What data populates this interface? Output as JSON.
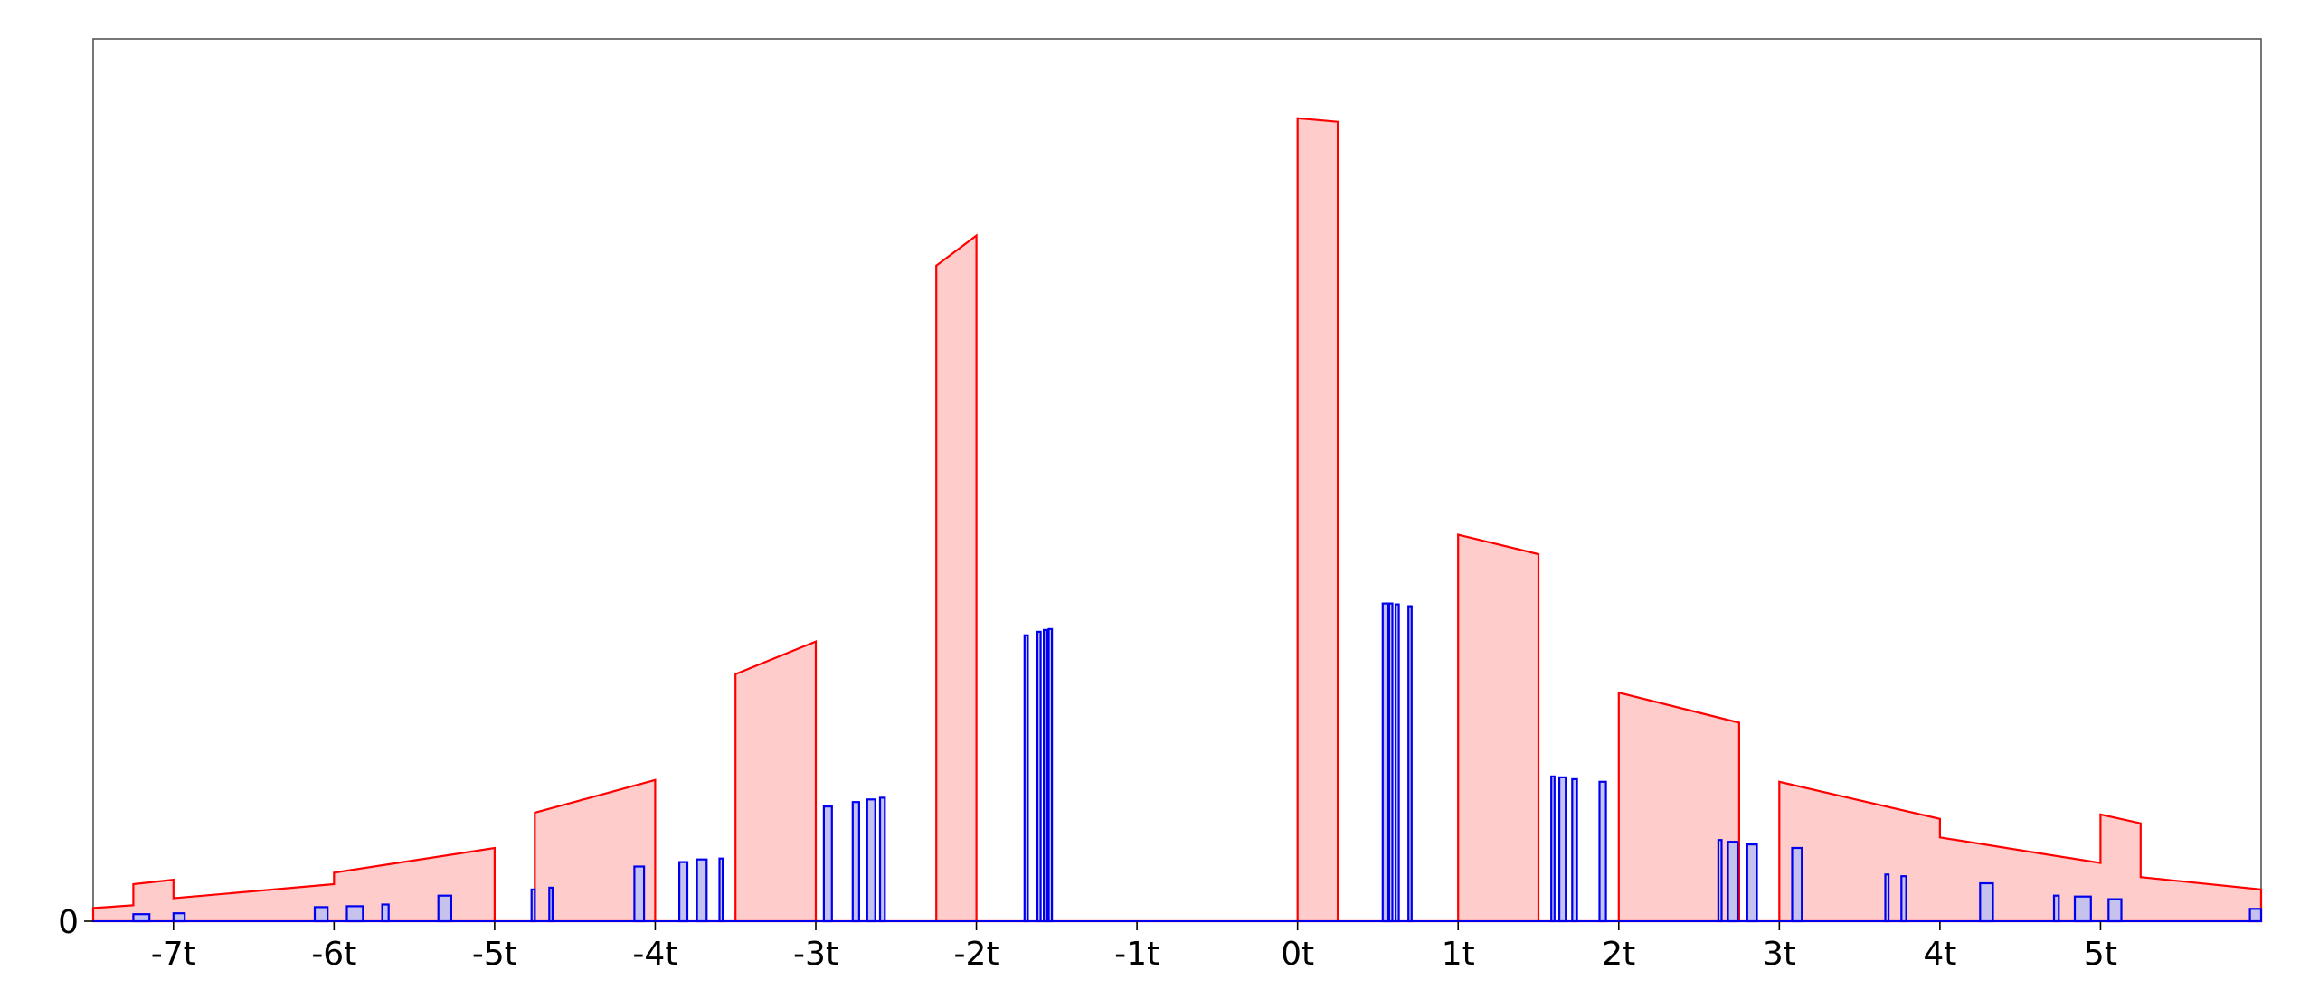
{
  "chart_data": {
    "type": "area",
    "x_tick_labels": [
      "-7t",
      "-6t",
      "-5t",
      "-4t",
      "-3t",
      "-2t",
      "-1t",
      "0t",
      "1t",
      "2t",
      "3t",
      "4t",
      "5t"
    ],
    "x_ticks": [
      -7,
      -6,
      -5,
      -4,
      -3,
      -2,
      -1,
      0,
      1,
      2,
      3,
      4,
      5
    ],
    "y_tick_labels": [
      "0"
    ],
    "y_ticks": [
      0
    ],
    "xlim": [
      -7.5,
      6.0
    ],
    "ylim": [
      0,
      100
    ],
    "grid": false,
    "legend": "none",
    "colors": {
      "red_stroke": "#ff0000",
      "red_fill": "#ffcccc",
      "blue_stroke": "#0000ee",
      "blue_fill": "#c6c2ee",
      "frame": "#555555"
    },
    "series": [
      {
        "color": "red",
        "points": [
          [
            -7.5,
            1.5
          ],
          [
            -7.25,
            1.8
          ],
          [
            -7.25,
            4.2
          ],
          [
            -7.0,
            4.7
          ],
          [
            -7.0,
            2.6
          ],
          [
            -6.0,
            4.2
          ],
          [
            -6.0,
            5.5
          ],
          [
            -5.0,
            8.3
          ],
          [
            -5.0,
            0
          ],
          [
            -4.75,
            0
          ],
          [
            -4.75,
            12.3
          ],
          [
            -4.0,
            16.0
          ],
          [
            -4.0,
            0
          ],
          [
            -3.5,
            0
          ],
          [
            -3.5,
            28.0
          ],
          [
            -3.0,
            31.7
          ],
          [
            -3.0,
            0
          ],
          [
            -2.25,
            0
          ],
          [
            -2.25,
            74.3
          ],
          [
            -2.0,
            77.7
          ],
          [
            -2.0,
            0
          ],
          [
            0.0,
            0
          ],
          [
            0.0,
            91.0
          ],
          [
            0.25,
            90.6
          ],
          [
            0.25,
            0
          ],
          [
            1.0,
            0
          ],
          [
            1.0,
            43.8
          ],
          [
            1.5,
            41.6
          ],
          [
            1.5,
            0
          ],
          [
            2.0,
            0
          ],
          [
            2.0,
            25.9
          ],
          [
            2.75,
            22.5
          ],
          [
            2.75,
            0
          ],
          [
            3.0,
            0
          ],
          [
            3.0,
            15.8
          ],
          [
            4.0,
            11.6
          ],
          [
            4.0,
            9.5
          ],
          [
            5.0,
            6.6
          ],
          [
            5.0,
            12.1
          ],
          [
            5.25,
            11.1
          ],
          [
            5.25,
            5.0
          ],
          [
            6.0,
            3.6
          ]
        ]
      },
      {
        "color": "blue",
        "bars": [
          [
            -7.25,
            -7.15,
            0.8
          ],
          [
            -7.0,
            -6.93,
            0.9
          ],
          [
            -6.12,
            -6.04,
            1.6
          ],
          [
            -5.92,
            -5.82,
            1.7
          ],
          [
            -5.7,
            -5.66,
            1.9
          ],
          [
            -5.35,
            -5.27,
            2.9
          ],
          [
            -4.77,
            -4.75,
            3.6
          ],
          [
            -4.66,
            -4.64,
            3.8
          ],
          [
            -4.13,
            -4.07,
            6.2
          ],
          [
            -3.85,
            -3.8,
            6.7
          ],
          [
            -3.74,
            -3.68,
            7.0
          ],
          [
            -3.6,
            -3.58,
            7.1
          ],
          [
            -2.95,
            -2.9,
            13.0
          ],
          [
            -2.77,
            -2.73,
            13.5
          ],
          [
            -2.68,
            -2.63,
            13.8
          ],
          [
            -2.6,
            -2.57,
            14.0
          ],
          [
            -1.7,
            -1.68,
            32.4
          ],
          [
            -1.62,
            -1.6,
            32.8
          ],
          [
            -1.58,
            -1.56,
            33.0
          ],
          [
            -1.55,
            -1.53,
            33.1
          ],
          [
            0.53,
            0.56,
            36.0
          ],
          [
            0.57,
            0.59,
            36.0
          ],
          [
            0.61,
            0.63,
            35.9
          ],
          [
            0.69,
            0.71,
            35.7
          ],
          [
            1.58,
            1.6,
            16.4
          ],
          [
            1.63,
            1.67,
            16.3
          ],
          [
            1.71,
            1.74,
            16.1
          ],
          [
            1.88,
            1.92,
            15.8
          ],
          [
            2.62,
            2.64,
            9.2
          ],
          [
            2.68,
            2.74,
            9.0
          ],
          [
            2.8,
            2.86,
            8.7
          ],
          [
            3.08,
            3.14,
            8.3
          ],
          [
            3.66,
            3.68,
            5.3
          ],
          [
            3.76,
            3.79,
            5.1
          ],
          [
            4.25,
            4.33,
            4.3
          ],
          [
            4.71,
            4.74,
            2.9
          ],
          [
            4.84,
            4.94,
            2.8
          ],
          [
            5.05,
            5.13,
            2.5
          ],
          [
            5.93,
            6.0,
            1.4
          ]
        ]
      }
    ]
  }
}
